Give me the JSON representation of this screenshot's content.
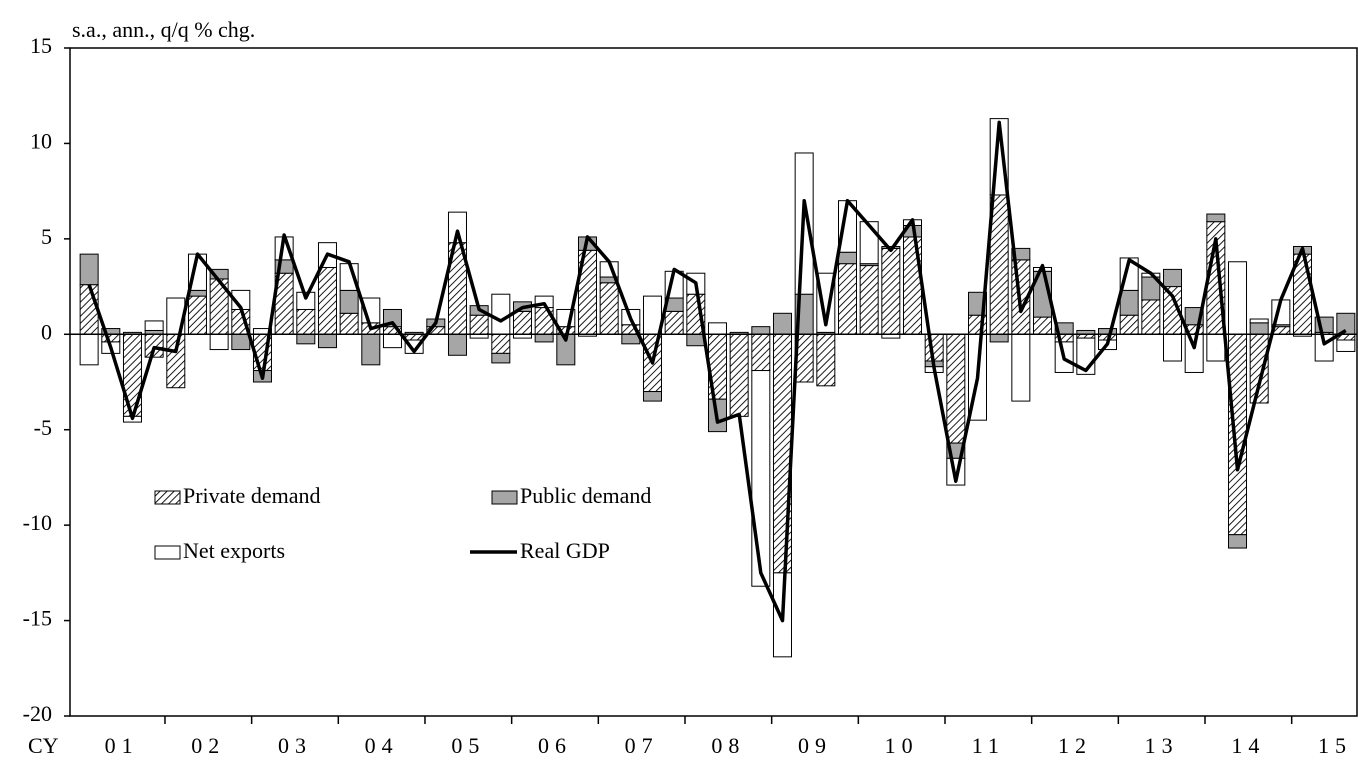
{
  "chart_data": {
    "type": "bar",
    "stacked": true,
    "y_label": "s.a., ann., q/q % chg.",
    "x_label": "CY",
    "years": [
      "01",
      "02",
      "03",
      "04",
      "05",
      "06",
      "07",
      "08",
      "09",
      "10",
      "11",
      "12",
      "13",
      "14",
      "15"
    ],
    "periods_per_year": 4,
    "ylim": [
      -20,
      15
    ],
    "yticks": [
      15,
      10,
      5,
      0,
      -5,
      -10,
      -15,
      -20
    ],
    "legend": "lower left",
    "series": [
      {
        "name": "Private demand",
        "color": "#000000",
        "pattern": "hatched",
        "values": [
          2.6,
          -0.4,
          -4.3,
          -1.2,
          -2.8,
          2.0,
          2.9,
          1.3,
          -1.9,
          3.2,
          1.3,
          3.5,
          1.1,
          0.6,
          0.4,
          -0.3,
          0.4,
          4.8,
          1.0,
          -1.0,
          1.2,
          1.4,
          0.4,
          4.4,
          2.7,
          0.5,
          -3.0,
          1.2,
          2.1,
          -3.4,
          -4.3,
          -1.9,
          -12.5,
          -2.5,
          -2.7,
          3.7,
          3.6,
          4.5,
          5.1,
          -1.4,
          -5.7,
          1.0,
          7.3,
          3.9,
          0.9,
          -0.4,
          -0.2,
          -0.3,
          1.0,
          1.8,
          2.5,
          0.5,
          5.9,
          -10.5,
          -3.6,
          0.4,
          4.2,
          0.1,
          -0.3
        ]
      },
      {
        "name": "Public demand",
        "color": "#a6a6a6",
        "values": [
          1.6,
          0.3,
          0.1,
          0.2,
          0.0,
          0.3,
          0.5,
          -0.8,
          -0.6,
          0.7,
          -0.5,
          -0.7,
          1.2,
          -1.6,
          0.9,
          0.1,
          0.4,
          -1.1,
          0.5,
          -0.5,
          0.5,
          -0.4,
          -1.6,
          0.7,
          0.3,
          -0.5,
          -0.5,
          0.7,
          -0.6,
          -1.7,
          0.1,
          0.4,
          1.1,
          2.1,
          0.1,
          0.6,
          0.1,
          0.1,
          0.6,
          -0.3,
          -0.8,
          1.2,
          -0.4,
          0.6,
          2.4,
          0.6,
          0.2,
          0.3,
          1.3,
          1.2,
          0.9,
          0.9,
          0.4,
          -0.7,
          0.6,
          0.1,
          0.4,
          0.8,
          1.1
        ]
      },
      {
        "name": "Net exports",
        "color": "#ffffff",
        "values": [
          -1.6,
          -0.6,
          -0.3,
          0.5,
          1.9,
          1.9,
          -0.8,
          1.0,
          0.3,
          1.2,
          0.9,
          1.3,
          1.4,
          1.3,
          -0.7,
          -0.7,
          0.0,
          1.6,
          -0.2,
          2.1,
          -0.2,
          0.6,
          0.9,
          -0.1,
          0.8,
          0.8,
          2.0,
          1.4,
          1.1,
          0.6,
          0.0,
          -11.3,
          -4.4,
          7.4,
          3.1,
          2.7,
          2.2,
          -0.2,
          0.3,
          -0.3,
          -1.4,
          -4.5,
          4.0,
          -3.5,
          0.2,
          -1.6,
          -1.9,
          -0.5,
          1.7,
          0.2,
          -1.4,
          -2.0,
          -1.4,
          3.8,
          0.2,
          1.3,
          -0.1,
          -1.4,
          -0.6
        ]
      },
      {
        "name": "Real GDP",
        "color": "#000000",
        "type": "line",
        "values": [
          2.6,
          -0.7,
          -4.4,
          -0.7,
          -0.9,
          4.2,
          2.8,
          1.4,
          -2.3,
          5.2,
          1.9,
          4.2,
          3.8,
          0.3,
          0.6,
          -0.9,
          0.6,
          5.4,
          1.3,
          0.7,
          1.4,
          1.6,
          -0.3,
          5.1,
          3.8,
          0.8,
          -1.5,
          3.4,
          2.7,
          -4.6,
          -4.2,
          -12.5,
          -15.0,
          7.0,
          0.5,
          7.0,
          5.7,
          4.4,
          6.0,
          -1.8,
          -7.7,
          -2.3,
          11.1,
          1.2,
          3.6,
          -1.3,
          -1.9,
          -0.5,
          3.9,
          3.2,
          2.0,
          -0.7,
          5.0,
          -7.1,
          -2.6,
          1.8,
          4.5,
          -0.5,
          0.2
        ]
      }
    ]
  }
}
